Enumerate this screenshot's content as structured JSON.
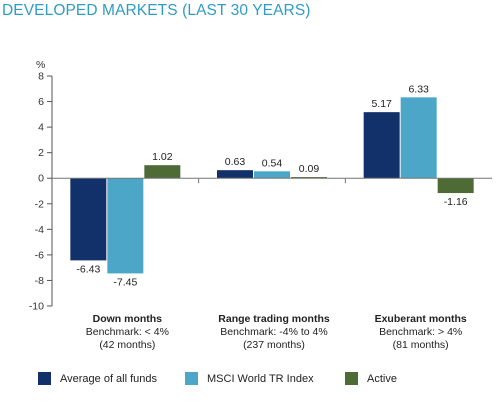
{
  "title": "DEVELOPED MARKETS (LAST 30 YEARS)",
  "colors": {
    "title": "#2f9cc6",
    "series": [
      "#123069",
      "#4ba6c7",
      "#4e6a35"
    ]
  },
  "chart_data": {
    "type": "bar",
    "ylabel": "%",
    "ylim": [
      -10,
      8
    ],
    "yticks": [
      8,
      6,
      4,
      2,
      0,
      -2,
      -4,
      -6,
      -8,
      -10
    ],
    "grid": false,
    "legend_position": "bottom",
    "categories": [
      {
        "title": "Down months",
        "line2": "Benchmark: < 4%",
        "line3": "(42 months)"
      },
      {
        "title": "Range trading months",
        "line2": "Benchmark: -4% to 4%",
        "line3": "(237 months)"
      },
      {
        "title": "Exuberant months",
        "line2": "Benchmark: > 4%",
        "line3": "(81 months)"
      }
    ],
    "series": [
      {
        "name": "Average of all funds",
        "values": [
          -6.43,
          0.63,
          5.17
        ],
        "labels": [
          "-6.43",
          "0.63",
          "5.17"
        ]
      },
      {
        "name": "MSCI World TR Index",
        "values": [
          -7.45,
          0.54,
          6.33
        ],
        "labels": [
          "-7.45",
          "0.54",
          "6.33"
        ]
      },
      {
        "name": "Active",
        "values": [
          1.02,
          0.09,
          -1.16
        ],
        "labels": [
          "1.02",
          "0.09",
          "-1.16"
        ]
      }
    ]
  }
}
